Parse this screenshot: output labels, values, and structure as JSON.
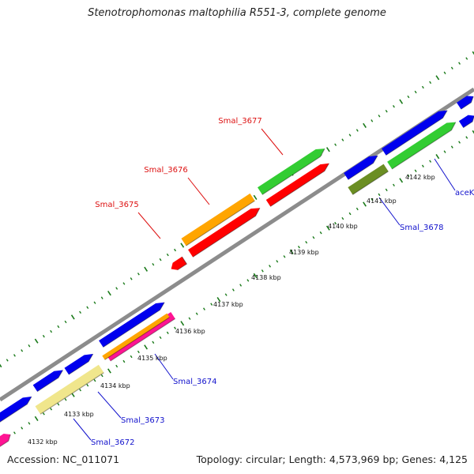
{
  "title": "Stenotrophomonas maltophilia R551-3, complete genome",
  "footer": {
    "accession": "Accession: NC_011071",
    "summary": "Topology: circular; Length: 4,573,969 bp; Genes: 4,125"
  },
  "colors": {
    "backbone": "#8c8c8c",
    "tick_dots": "#1a7a1a",
    "label_red": "#dd1111",
    "label_blue": "#1111cc"
  },
  "ticks": [
    {
      "label": "4132 kbp"
    },
    {
      "label": "4133 kbp"
    },
    {
      "label": "4134 kbp"
    },
    {
      "label": "4135 kbp"
    },
    {
      "label": "4136 kbp"
    },
    {
      "label": "4137 kbp"
    },
    {
      "label": "4138 kbp"
    },
    {
      "label": "4139 kbp"
    },
    {
      "label": "4140 kbp"
    },
    {
      "label": "4141 kbp"
    },
    {
      "label": "4142 kbp"
    }
  ],
  "gene_labels": [
    {
      "name": "Smal_3677",
      "color": "#dd1111"
    },
    {
      "name": "Smal_3676",
      "color": "#dd1111"
    },
    {
      "name": "Smal_3675",
      "color": "#dd1111"
    },
    {
      "name": "Smal_3678",
      "color": "#1111cc"
    },
    {
      "name": "aceK",
      "color": "#1111cc"
    },
    {
      "name": "Smal_3674",
      "color": "#1111cc"
    },
    {
      "name": "Smal_3673",
      "color": "#1111cc"
    },
    {
      "name": "Smal_3672",
      "color": "#1111cc"
    }
  ],
  "features": [
    {
      "type": "gene",
      "color": "#0000ee"
    },
    {
      "type": "gene",
      "color": "#ff1493"
    },
    {
      "type": "gene",
      "color": "#0000ee"
    },
    {
      "type": "gene",
      "color": "#f0e68c"
    },
    {
      "type": "gene",
      "color": "#0000ee"
    },
    {
      "type": "gene",
      "color": "#0000ee"
    },
    {
      "type": "gene",
      "color": "#ff1493"
    },
    {
      "type": "gene",
      "color": "#ffa500"
    },
    {
      "type": "gene",
      "color": "#ff0000"
    },
    {
      "type": "gene",
      "color": "#ff0000"
    },
    {
      "type": "gene",
      "color": "#ffa500"
    },
    {
      "type": "gene",
      "color": "#ff0000"
    },
    {
      "type": "gene",
      "color": "#32cd32"
    },
    {
      "type": "gene",
      "color": "#0000ee"
    },
    {
      "type": "gene",
      "color": "#6b8e23"
    },
    {
      "type": "gene",
      "color": "#0000ee"
    },
    {
      "type": "gene",
      "color": "#32cd32"
    },
    {
      "type": "gene",
      "color": "#0000ee"
    },
    {
      "type": "gene",
      "color": "#0000ee"
    }
  ]
}
